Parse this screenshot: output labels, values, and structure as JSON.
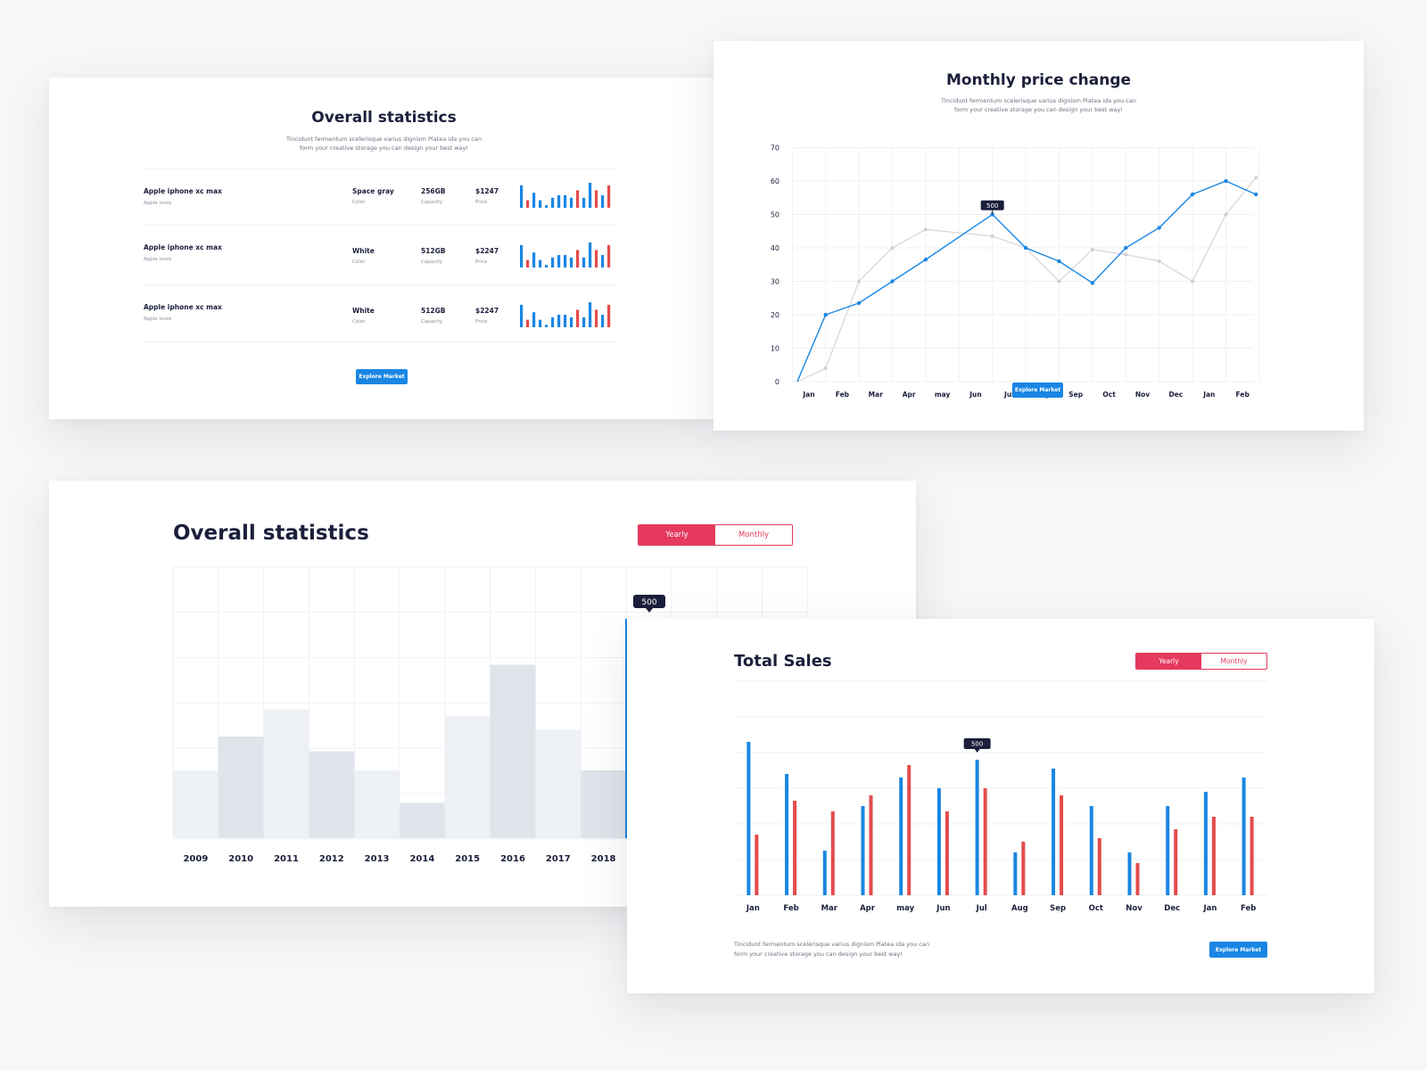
{
  "stats_small": {
    "title": "Overall statistics",
    "subtitle_lines": [
      "Tincidunt fermentum scelerisque varius dignism Platea ida you can",
      "form your creative storage you can design your best way!"
    ],
    "rows": [
      {
        "name": "Apple iphone xc max",
        "store": "Apple store",
        "color": "Space gray",
        "color_label": "Color",
        "capacity": "256GB",
        "capacity_label": "Capacity",
        "price": "$1247",
        "price_label": "Price"
      },
      {
        "name": "Apple iphone xc max",
        "store": "Apple store",
        "color": "White",
        "color_label": "Color",
        "capacity": "512GB",
        "capacity_label": "Capacity",
        "price": "$2247",
        "price_label": "Price"
      },
      {
        "name": "Apple iphone xc max",
        "store": "Apple store",
        "color": "White",
        "color_label": "Color",
        "capacity": "512GB",
        "capacity_label": "Capacity",
        "price": "$2247",
        "price_label": "Price"
      }
    ],
    "button": "Explore Market"
  },
  "price_change": {
    "title": "Monthly price change",
    "subtitle_lines": [
      "Tincidunt fermentum scelerisque varius dignism Platea ida you can",
      "form your creative storage you can design your best way!"
    ],
    "button": "Explore Market"
  },
  "stats_big": {
    "title": "Overall statistics",
    "toggle_active": "Yearly",
    "toggle_inactive": "Monthly"
  },
  "sales": {
    "title": "Total Sales",
    "toggle_active": "Yearly",
    "toggle_inactive": "Monthly",
    "footer_lines": [
      "Tincidunt fermentum scelerisque varius dignism Platea ida you can",
      "form your creative storage you can design your best way!"
    ],
    "button": "Explore Market"
  },
  "colors": {
    "blue": "#1a86e3",
    "red": "#e54b4b",
    "pink": "#e5395e",
    "navy": "#1b1f3b",
    "line_gray": "#d6d6da",
    "bar_light": "#edf0f5",
    "bar_dark": "#dfe3ea"
  },
  "chart_data": [
    {
      "id": "sparkline",
      "type": "bar",
      "series": [
        {
          "values": [
            9,
            3,
            6,
            3,
            1,
            4,
            5,
            5,
            4,
            7,
            4,
            10,
            7,
            5,
            9
          ]
        }
      ],
      "bar_colors": [
        "blue",
        "red",
        "blue",
        "blue",
        "blue",
        "blue",
        "blue",
        "blue",
        "blue",
        "red",
        "blue",
        "blue",
        "red",
        "blue",
        "red"
      ]
    },
    {
      "id": "monthly-price-change",
      "type": "line",
      "categories": [
        "Jan",
        "Feb",
        "Mar",
        "Apr",
        "may",
        "Jun",
        "Jul",
        "Aug",
        "Sep",
        "Oct",
        "Nov",
        "Dec",
        "Jan",
        "Feb"
      ],
      "yticks": [
        0,
        10,
        20,
        30,
        40,
        50,
        60,
        70
      ],
      "ylim": [
        0,
        70
      ],
      "grid": true,
      "series": [
        {
          "x": [
            -0.35,
            0.5,
            1.5,
            2.5,
            3.5,
            5.5,
            6.5,
            7.5,
            8.5,
            9.5,
            10.5,
            11.5,
            12.5,
            13.4
          ],
          "values": [
            0,
            20,
            23.5,
            30,
            36.5,
            50,
            40,
            36,
            29.5,
            40,
            46,
            56,
            60,
            56
          ]
        },
        {
          "x": [
            -0.35,
            0.5,
            1.5,
            2.5,
            3.5,
            5.5,
            6.5,
            7.5,
            8.5,
            9.5,
            10.5,
            11.5,
            12.5,
            13.4
          ],
          "values": [
            0,
            4,
            30,
            40,
            45.5,
            43.5,
            40,
            30,
            39.5,
            38,
            36,
            30,
            50,
            61
          ]
        }
      ],
      "annotations": [
        {
          "label": "500",
          "x": 5.5
        }
      ]
    },
    {
      "id": "overall-statistics-yearly",
      "type": "bar",
      "categories": [
        "2009",
        "2010",
        "2011",
        "2012",
        "2013",
        "2014",
        "2015",
        "2016",
        "2017",
        "2018"
      ],
      "values": [
        25,
        37.5,
        47.5,
        32,
        25,
        13,
        45,
        64,
        40,
        25
      ],
      "ylim": [
        0,
        100
      ],
      "grid": true,
      "annotations": [
        {
          "label": "500"
        }
      ]
    },
    {
      "id": "total-sales",
      "type": "bar",
      "categories": [
        "Jan",
        "Feb",
        "Mar",
        "Apr",
        "may",
        "Jun",
        "Jul",
        "Aug",
        "Sep",
        "Oct",
        "Nov",
        "Dec",
        "Jan",
        "Feb"
      ],
      "ylim": [
        0,
        5
      ],
      "grid": true,
      "series": [
        {
          "values": [
            4.3,
            3.4,
            1.25,
            2.5,
            3.3,
            3.0,
            3.8,
            1.2,
            3.55,
            2.5,
            1.2,
            2.5,
            2.9,
            3.3
          ]
        },
        {
          "values": [
            1.7,
            2.65,
            2.35,
            2.8,
            3.65,
            2.35,
            3.0,
            1.5,
            2.8,
            1.6,
            0.9,
            1.85,
            2.2,
            2.2
          ]
        }
      ],
      "annotations": [
        {
          "label": "500",
          "index": 6
        }
      ]
    }
  ]
}
